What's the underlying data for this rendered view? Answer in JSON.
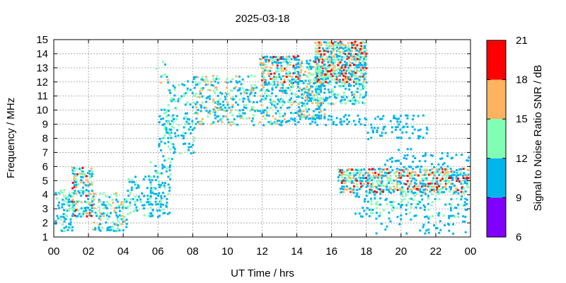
{
  "chart_data": {
    "type": "heatmap",
    "title": "2025-03-18",
    "xlabel": "UT Time / hrs",
    "ylabel": "Frequency / MHz",
    "xlim": [
      0,
      24
    ],
    "ylim": [
      1,
      15
    ],
    "x_ticks": [
      "00",
      "02",
      "04",
      "06",
      "08",
      "10",
      "12",
      "14",
      "16",
      "18",
      "20",
      "22",
      "00"
    ],
    "y_ticks": [
      "1",
      "2",
      "3",
      "4",
      "5",
      "6",
      "7",
      "8",
      "9",
      "10",
      "11",
      "12",
      "13",
      "14",
      "15"
    ],
    "grid": true,
    "colorbar": {
      "label": "Signal to Noise Ratio SNR / dB",
      "ticks": [
        "21",
        "18",
        "15",
        "12",
        "9",
        "6"
      ],
      "bands": [
        {
          "from": 6,
          "to": 9,
          "color": "#8000ff"
        },
        {
          "from": 9,
          "to": 12,
          "color": "#00b4ec"
        },
        {
          "from": 12,
          "to": 15,
          "color": "#80ffb4"
        },
        {
          "from": 15,
          "to": 18,
          "color": "#ffb360"
        },
        {
          "from": 18,
          "to": 21,
          "color": "#ff0000"
        }
      ]
    },
    "regions": [
      {
        "t": [
          0.0,
          1.0
        ],
        "f": [
          1.5,
          4.5
        ],
        "density": 0.45,
        "snr": [
          9,
          14
        ]
      },
      {
        "t": [
          1.0,
          2.2
        ],
        "f": [
          2.5,
          6.0
        ],
        "density": 0.55,
        "snr": [
          9,
          19
        ]
      },
      {
        "t": [
          2.2,
          4.2
        ],
        "f": [
          1.5,
          4.2
        ],
        "density": 0.35,
        "snr": [
          9,
          18
        ]
      },
      {
        "t": [
          4.2,
          5.6
        ],
        "f": [
          2.5,
          5.5
        ],
        "density": 0.3,
        "snr": [
          9,
          15
        ]
      },
      {
        "t": [
          5.5,
          6.6
        ],
        "f": [
          2.5,
          6.5
        ],
        "density": 0.3,
        "snr": [
          9,
          14
        ]
      },
      {
        "t": [
          6.0,
          6.8
        ],
        "f": [
          6.0,
          10.0
        ],
        "density": 0.25,
        "snr": [
          9,
          14
        ]
      },
      {
        "t": [
          5.8,
          6.6
        ],
        "f": [
          12.0,
          13.4
        ],
        "density": 0.15,
        "snr": [
          9,
          20
        ]
      },
      {
        "t": [
          6.5,
          8.0
        ],
        "f": [
          7.0,
          12.0
        ],
        "density": 0.25,
        "snr": [
          9,
          14
        ]
      },
      {
        "t": [
          8.0,
          12.0
        ],
        "f": [
          9.0,
          12.5
        ],
        "density": 0.32,
        "snr": [
          9,
          18
        ]
      },
      {
        "t": [
          11.8,
          14.0
        ],
        "f": [
          12.0,
          13.8
        ],
        "density": 0.55,
        "snr": [
          9,
          21
        ]
      },
      {
        "t": [
          12.0,
          14.0
        ],
        "f": [
          9.0,
          12.0
        ],
        "density": 0.3,
        "snr": [
          9,
          16
        ]
      },
      {
        "t": [
          14.0,
          15.5
        ],
        "f": [
          9.5,
          13.5
        ],
        "density": 0.4,
        "snr": [
          9,
          18
        ]
      },
      {
        "t": [
          15.0,
          18.0
        ],
        "f": [
          12.0,
          15.0
        ],
        "density": 0.8,
        "snr": [
          10,
          21
        ]
      },
      {
        "t": [
          14.5,
          18.0
        ],
        "f": [
          10.5,
          12.0
        ],
        "density": 0.4,
        "snr": [
          9,
          16
        ]
      },
      {
        "t": [
          14.0,
          18.0
        ],
        "f": [
          9.0,
          9.6
        ],
        "density": 0.3,
        "snr": [
          9,
          12
        ]
      },
      {
        "t": [
          18.0,
          21.5
        ],
        "f": [
          8.0,
          9.6
        ],
        "density": 0.22,
        "snr": [
          9,
          12
        ]
      },
      {
        "t": [
          19.0,
          24.0
        ],
        "f": [
          6.0,
          7.3
        ],
        "density": 0.15,
        "snr": [
          9,
          12
        ]
      },
      {
        "t": [
          16.3,
          24.0
        ],
        "f": [
          4.2,
          6.0
        ],
        "density": 0.65,
        "snr": [
          9,
          21
        ]
      },
      {
        "t": [
          17.3,
          24.0
        ],
        "f": [
          2.5,
          4.2
        ],
        "density": 0.25,
        "snr": [
          9,
          15
        ]
      },
      {
        "t": [
          18.5,
          24.0
        ],
        "f": [
          1.3,
          2.5
        ],
        "density": 0.1,
        "snr": [
          9,
          12
        ]
      }
    ]
  }
}
